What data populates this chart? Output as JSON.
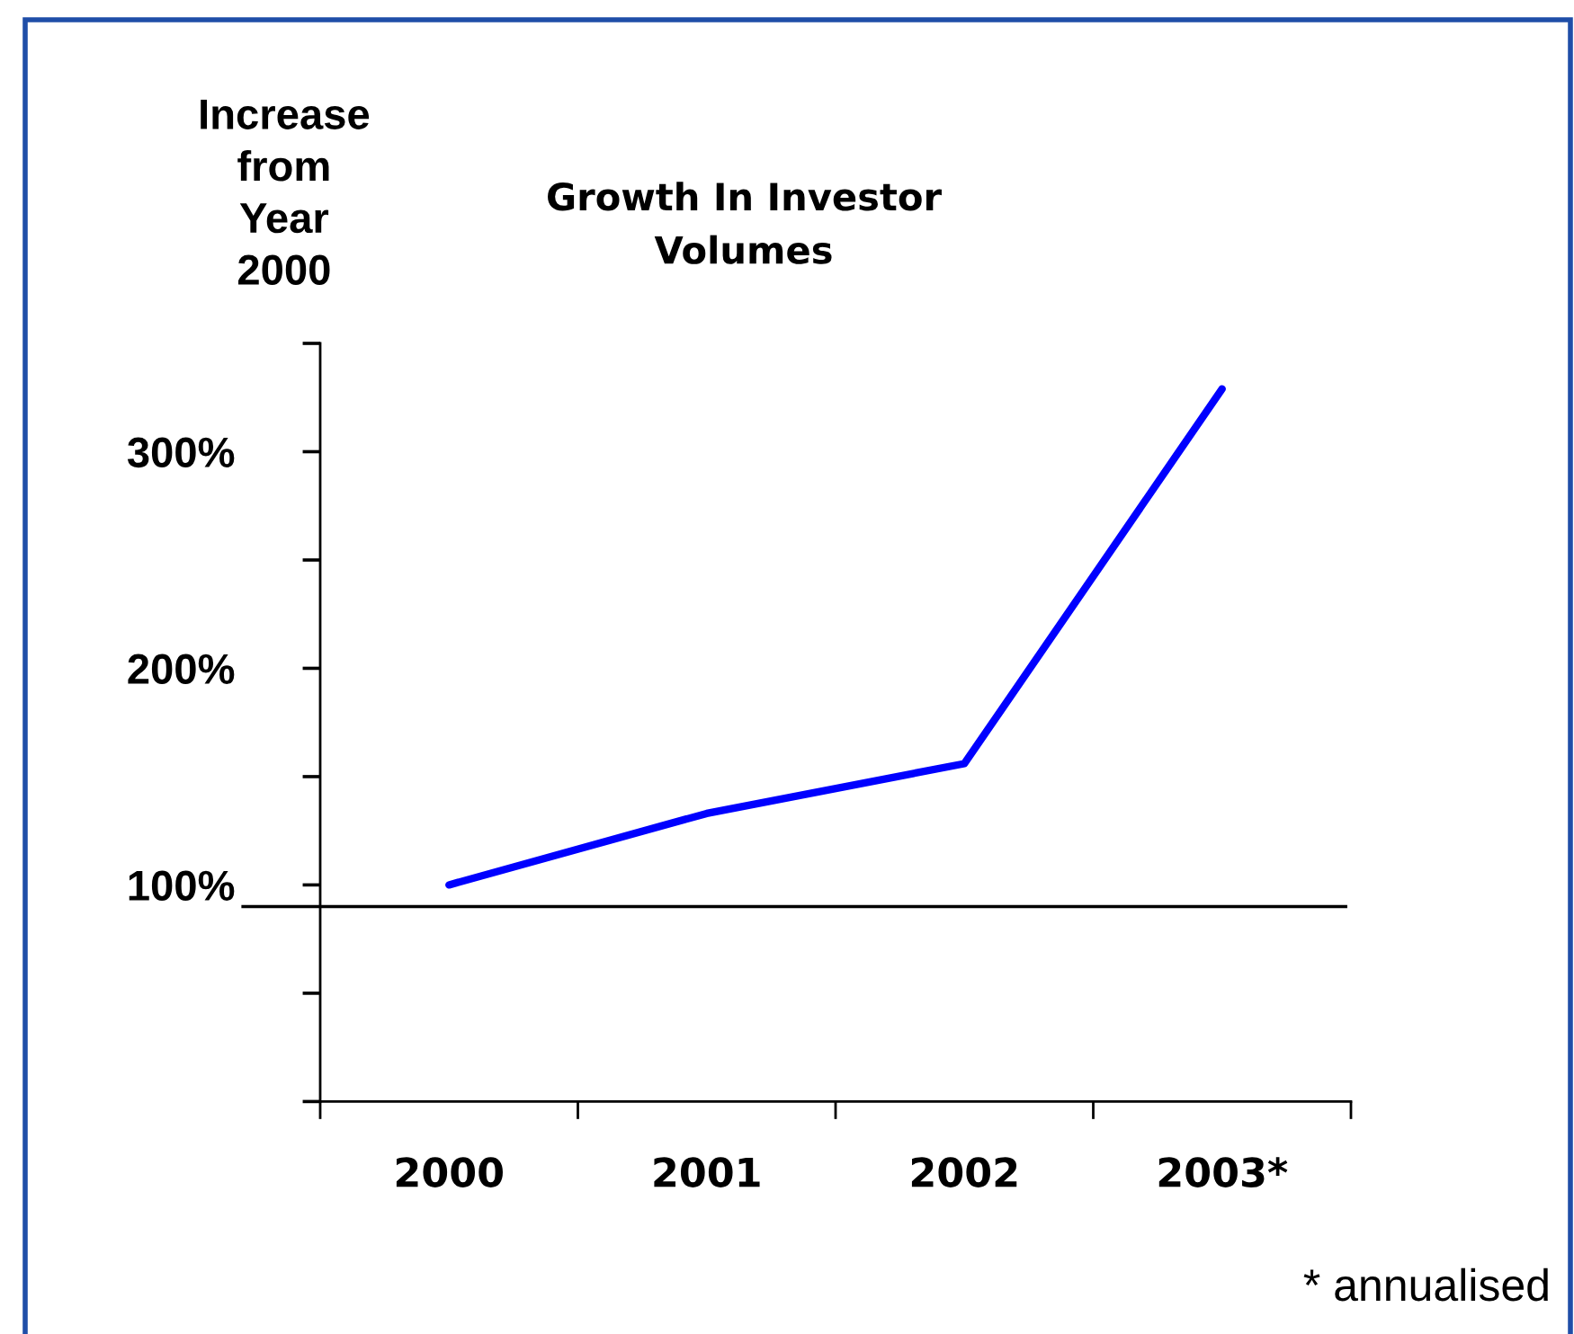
{
  "chart_data": {
    "type": "line",
    "title": "Growth In Investor\nVolumes",
    "ylabel": "Increase\nfrom\nYear\n2000",
    "categories": [
      "2000",
      "2001",
      "2002",
      "2003*"
    ],
    "series": [
      {
        "color": "#0000ff",
        "values": [
          100,
          133,
          156,
          329
        ]
      }
    ],
    "ylim": [
      0,
      350
    ],
    "yticks": [
      {
        "value": 0,
        "label": null
      },
      {
        "value": 50,
        "label": null
      },
      {
        "value": 100,
        "label": "100%"
      },
      {
        "value": 150,
        "label": null
      },
      {
        "value": 200,
        "label": "200%"
      },
      {
        "value": 250,
        "label": null
      },
      {
        "value": 300,
        "label": "300%"
      },
      {
        "value": 350,
        "label": null
      }
    ],
    "ref_lines": [
      {
        "axis": "y",
        "value": 90,
        "color": "#000000"
      }
    ],
    "annotations": [
      "* annualised"
    ],
    "grid": false,
    "marker": "none",
    "line_style": "solid"
  }
}
